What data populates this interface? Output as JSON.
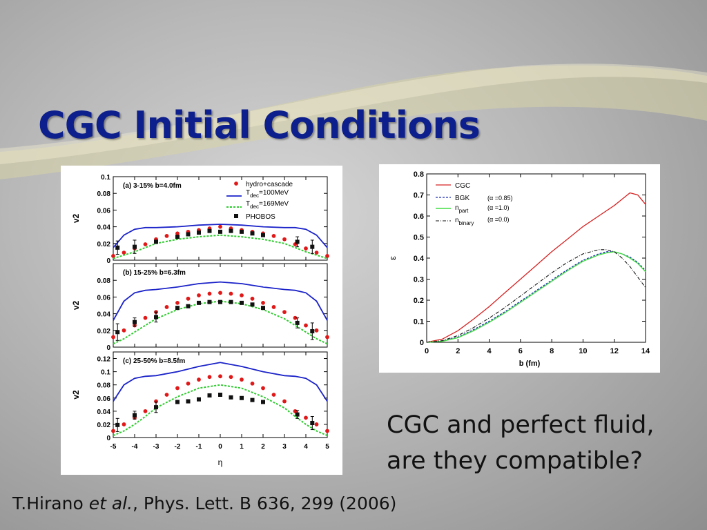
{
  "slide": {
    "title": "CGC Initial Conditions",
    "caption_line1": "CGC and perfect fluid,",
    "caption_line2": "are they compatible?",
    "citation_author": "T.Hirano ",
    "citation_etal": "et al.",
    "citation_rest": ", Phys. Lett. B 636, 299 (2006)",
    "title_color": "#0d1f8c"
  },
  "chart_data": [
    {
      "type": "line",
      "title": "(a) 3-15% b=4.0fm",
      "xlabel": "η",
      "ylabel": "v2",
      "xlim": [
        -5,
        5
      ],
      "ylim": [
        0,
        0.1
      ],
      "yticks": [
        "0",
        "0.02",
        "0.04",
        "0.06",
        "0.08",
        "0.1"
      ],
      "legend": {
        "hydro": "hydro+cascade",
        "t100_main": "T",
        "t100_sub": "dec",
        "t100_tail": "=100MeV",
        "t169_main": "T",
        "t169_sub": "dec",
        "t169_tail": "=169MeV",
        "phobos": "PHOBOS"
      },
      "series": [
        {
          "name": "hydro+cascade",
          "x": [
            -5,
            -4.5,
            -4,
            -3.5,
            -3,
            -2.5,
            -2,
            -1.5,
            -1,
            -0.5,
            0,
            0.5,
            1,
            1.5,
            2,
            2.5,
            3,
            3.5,
            4,
            4.5,
            5
          ],
          "values": [
            0.005,
            0.009,
            0.014,
            0.019,
            0.025,
            0.029,
            0.032,
            0.034,
            0.036,
            0.038,
            0.04,
            0.038,
            0.036,
            0.034,
            0.032,
            0.029,
            0.025,
            0.019,
            0.014,
            0.009,
            0.005
          ]
        },
        {
          "name": "T_dec=100MeV",
          "x": [
            -5,
            -4.5,
            -4,
            -3.5,
            -3,
            -2,
            -1,
            0,
            1,
            2,
            3,
            3.5,
            4,
            4.5,
            5
          ],
          "values": [
            0.015,
            0.03,
            0.037,
            0.039,
            0.039,
            0.04,
            0.042,
            0.043,
            0.042,
            0.04,
            0.039,
            0.039,
            0.037,
            0.03,
            0.015
          ]
        },
        {
          "name": "T_dec=169MeV",
          "x": [
            -5,
            -4.5,
            -4,
            -3.5,
            -3,
            -2,
            -1,
            0,
            1,
            2,
            3,
            3.5,
            4,
            4.5,
            5
          ],
          "values": [
            0.002,
            0.006,
            0.01,
            0.015,
            0.02,
            0.025,
            0.028,
            0.03,
            0.028,
            0.025,
            0.02,
            0.015,
            0.01,
            0.006,
            0.002
          ]
        },
        {
          "name": "PHOBOS",
          "x": [
            -4.8,
            -4,
            -3,
            -2,
            -1.5,
            -1,
            -0.5,
            0,
            0.5,
            1,
            1.5,
            2,
            3.6,
            4.3
          ],
          "values": [
            0.015,
            0.016,
            0.022,
            0.028,
            0.031,
            0.033,
            0.035,
            0.034,
            0.035,
            0.034,
            0.032,
            0.03,
            0.022,
            0.016
          ],
          "err": [
            0.008,
            0.008,
            0,
            0,
            0,
            0,
            0,
            0,
            0,
            0,
            0,
            0,
            0.006,
            0.008
          ]
        }
      ]
    },
    {
      "type": "line",
      "title": "(b) 15-25% b=6.3fm",
      "xlabel": "η",
      "ylabel": "v2",
      "xlim": [
        -5,
        5
      ],
      "ylim": [
        0,
        0.1
      ],
      "yticks": [
        "0",
        "0.02",
        "0.04",
        "0.06",
        "0.08"
      ],
      "series": [
        {
          "name": "hydro+cascade",
          "x": [
            -5,
            -4.5,
            -4,
            -3.5,
            -3,
            -2.5,
            -2,
            -1.5,
            -1,
            -0.5,
            0,
            0.5,
            1,
            1.5,
            2,
            2.5,
            3,
            3.5,
            4,
            4.5,
            5
          ],
          "values": [
            0.012,
            0.02,
            0.026,
            0.035,
            0.042,
            0.048,
            0.053,
            0.058,
            0.062,
            0.064,
            0.065,
            0.064,
            0.062,
            0.058,
            0.053,
            0.048,
            0.042,
            0.035,
            0.026,
            0.02,
            0.012
          ]
        },
        {
          "name": "T_dec=100MeV",
          "x": [
            -5,
            -4.5,
            -4,
            -3.5,
            -3,
            -2,
            -1,
            0,
            1,
            2,
            3,
            3.5,
            4,
            4.5,
            5
          ],
          "values": [
            0.032,
            0.055,
            0.065,
            0.068,
            0.069,
            0.072,
            0.076,
            0.078,
            0.076,
            0.072,
            0.069,
            0.068,
            0.065,
            0.055,
            0.032
          ]
        },
        {
          "name": "T_dec=169MeV",
          "x": [
            -5,
            -4.5,
            -4,
            -3.5,
            -3,
            -2,
            -1,
            0,
            1,
            2,
            3,
            3.5,
            4,
            4.5,
            5
          ],
          "values": [
            0.004,
            0.01,
            0.018,
            0.026,
            0.034,
            0.045,
            0.052,
            0.055,
            0.052,
            0.045,
            0.034,
            0.026,
            0.018,
            0.01,
            0.004
          ]
        },
        {
          "name": "PHOBOS",
          "x": [
            -4.8,
            -4,
            -3,
            -2,
            -1.5,
            -1,
            -0.5,
            0,
            0.5,
            1,
            1.5,
            2,
            3.6,
            4.3
          ],
          "values": [
            0.018,
            0.03,
            0.036,
            0.047,
            0.049,
            0.053,
            0.054,
            0.054,
            0.054,
            0.053,
            0.051,
            0.047,
            0.029,
            0.019
          ],
          "err": [
            0.01,
            0.005,
            0.006,
            0,
            0,
            0,
            0,
            0,
            0,
            0,
            0,
            0,
            0.006,
            0.01
          ]
        }
      ]
    },
    {
      "type": "line",
      "title": "(c) 25-50% b=8.5fm",
      "xlabel": "η",
      "ylabel": "v2",
      "xlim": [
        -5,
        5
      ],
      "ylim": [
        0,
        0.13
      ],
      "yticks": [
        "0",
        "0.02",
        "0.04",
        "0.06",
        "0.08",
        "0.1",
        "0.12"
      ],
      "xticks": [
        "-5",
        "-4",
        "-3",
        "-2",
        "-1",
        "0",
        "1",
        "2",
        "3",
        "4",
        "5"
      ],
      "series": [
        {
          "name": "hydro+cascade",
          "x": [
            -5,
            -4.5,
            -4,
            -3.5,
            -3,
            -2.5,
            -2,
            -1.5,
            -1,
            -0.5,
            0,
            0.5,
            1,
            1.5,
            2,
            2.5,
            3,
            3.5,
            4,
            4.5,
            5
          ],
          "values": [
            0.01,
            0.02,
            0.03,
            0.04,
            0.055,
            0.065,
            0.075,
            0.082,
            0.088,
            0.092,
            0.093,
            0.092,
            0.088,
            0.082,
            0.075,
            0.065,
            0.055,
            0.04,
            0.03,
            0.02,
            0.01
          ]
        },
        {
          "name": "T_dec=100MeV",
          "x": [
            -5,
            -4.5,
            -4,
            -3.5,
            -3,
            -2,
            -1,
            0,
            1,
            2,
            3,
            3.5,
            4,
            4.5,
            5
          ],
          "values": [
            0.055,
            0.08,
            0.09,
            0.093,
            0.094,
            0.1,
            0.108,
            0.114,
            0.108,
            0.1,
            0.094,
            0.093,
            0.09,
            0.08,
            0.055
          ]
        },
        {
          "name": "T_dec=169MeV",
          "x": [
            -5,
            -4.5,
            -4,
            -3.5,
            -3,
            -2,
            -1,
            0,
            1,
            2,
            3,
            3.5,
            4,
            4.5,
            5
          ],
          "values": [
            0.003,
            0.01,
            0.02,
            0.032,
            0.045,
            0.062,
            0.075,
            0.08,
            0.075,
            0.062,
            0.045,
            0.032,
            0.02,
            0.01,
            0.003
          ]
        },
        {
          "name": "PHOBOS",
          "x": [
            -4.8,
            -4,
            -3,
            -2,
            -1.5,
            -1,
            -0.5,
            0,
            0.5,
            1,
            1.5,
            2,
            3.6,
            4.3
          ],
          "values": [
            0.019,
            0.034,
            0.046,
            0.054,
            0.055,
            0.058,
            0.064,
            0.065,
            0.061,
            0.06,
            0.057,
            0.054,
            0.035,
            0.022
          ],
          "err": [
            0.01,
            0.006,
            0.008,
            0,
            0,
            0,
            0,
            0,
            0,
            0,
            0,
            0,
            0.006,
            0.01
          ]
        }
      ]
    },
    {
      "type": "line",
      "title": "",
      "xlabel": "b (fm)",
      "ylabel": "ε",
      "xlim": [
        0,
        14
      ],
      "ylim": [
        0,
        0.8
      ],
      "xticks": [
        "0",
        "2",
        "4",
        "6",
        "8",
        "10",
        "12",
        "14"
      ],
      "yticks": [
        "0",
        "0.1",
        "0.2",
        "0.3",
        "0.4",
        "0.5",
        "0.6",
        "0.7",
        "0.8"
      ],
      "legend": {
        "cgc": "CGC",
        "bgk": "BGK",
        "bgk_alpha": "(α =0.85)",
        "npart_main": "n",
        "npart_sub": "part",
        "npart_alpha": "(α =1.0)",
        "nbin_main": "n",
        "nbin_sub": "binary",
        "nbin_alpha": "(α =0.0)"
      },
      "series": [
        {
          "name": "CGC",
          "x": [
            0,
            1,
            2,
            3,
            4,
            5,
            6,
            7,
            8,
            9,
            10,
            11,
            12,
            12.5,
            13,
            13.5,
            14
          ],
          "values": [
            0,
            0.015,
            0.055,
            0.11,
            0.17,
            0.235,
            0.3,
            0.365,
            0.43,
            0.49,
            0.55,
            0.6,
            0.65,
            0.68,
            0.71,
            0.7,
            0.655
          ]
        },
        {
          "name": "BGK",
          "x": [
            0,
            1,
            2,
            3,
            4,
            5,
            6,
            7,
            8,
            9,
            10,
            11,
            11.5,
            12,
            12.5,
            13,
            13.5,
            14
          ],
          "values": [
            0,
            0.006,
            0.025,
            0.06,
            0.1,
            0.145,
            0.195,
            0.245,
            0.295,
            0.345,
            0.39,
            0.42,
            0.43,
            0.43,
            0.42,
            0.405,
            0.38,
            0.34
          ]
        },
        {
          "name": "npart",
          "x": [
            0,
            1,
            2,
            3,
            4,
            5,
            6,
            7,
            8,
            9,
            10,
            11,
            11.5,
            12,
            12.5,
            13,
            13.5,
            14
          ],
          "values": [
            0,
            0.005,
            0.022,
            0.055,
            0.095,
            0.14,
            0.19,
            0.24,
            0.29,
            0.34,
            0.385,
            0.415,
            0.425,
            0.43,
            0.42,
            0.4,
            0.375,
            0.335
          ]
        },
        {
          "name": "nbinary",
          "x": [
            0,
            1,
            2,
            3,
            4,
            5,
            6,
            7,
            8,
            9,
            10,
            11,
            11.5,
            12,
            12.5,
            13,
            13.5,
            14
          ],
          "values": [
            0,
            0.008,
            0.032,
            0.07,
            0.115,
            0.165,
            0.22,
            0.275,
            0.33,
            0.38,
            0.42,
            0.44,
            0.44,
            0.43,
            0.4,
            0.36,
            0.31,
            0.26
          ]
        }
      ]
    }
  ]
}
